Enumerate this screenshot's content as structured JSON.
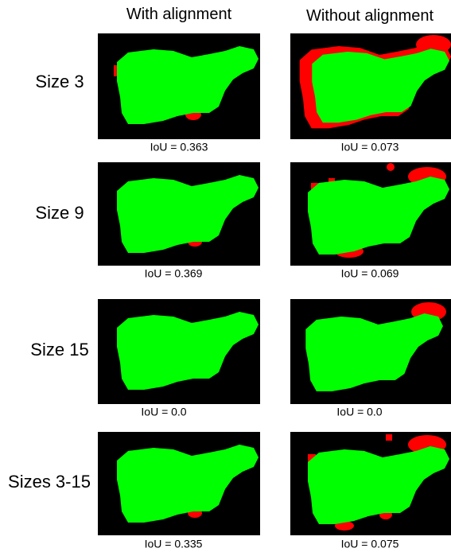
{
  "header": {
    "columns": [
      "With alignment",
      "Without alignment"
    ]
  },
  "rows": [
    {
      "label": "Size 3",
      "with_alignment": "IoU = 0.363",
      "without_alignment": "IoU = 0.073"
    },
    {
      "label": "Size 9",
      "with_alignment": "IoU = 0.369",
      "without_alignment": "IoU = 0.069"
    },
    {
      "label": "Size 15",
      "with_alignment": "IoU = 0.0",
      "without_alignment": "IoU = 0.0"
    },
    {
      "label": "Sizes 3-15",
      "with_alignment": "IoU = 0.335",
      "without_alignment": "IoU = 0.075"
    }
  ]
}
